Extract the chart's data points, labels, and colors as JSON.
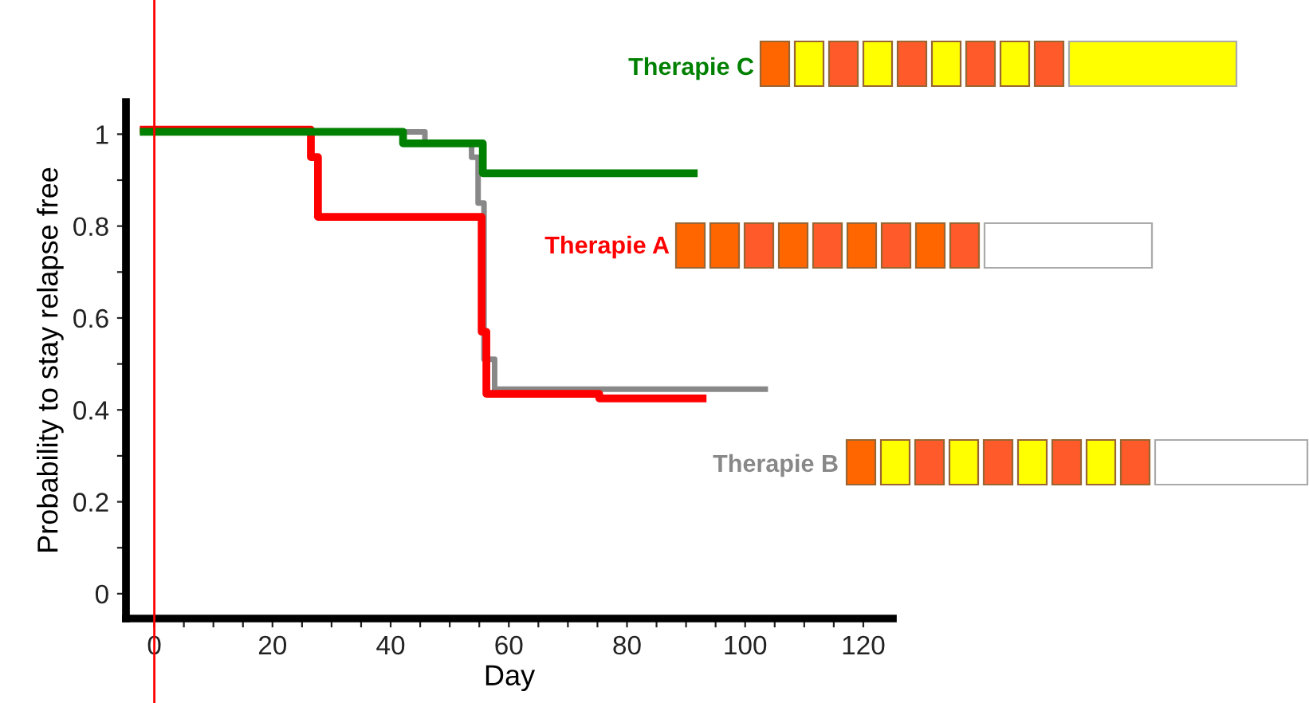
{
  "chart_data": {
    "type": "step",
    "xlabel": "Day",
    "ylabel": "Probability to stay relapse free",
    "series": [
      {
        "name": "Therapie A",
        "color": "#ff0000",
        "x": [
          -1.8,
          26.5,
          27.7,
          55.4,
          56.2,
          75.3,
          92.8
        ],
        "values": [
          1.01,
          0.95,
          0.82,
          0.57,
          0.435,
          0.425,
          0.425
        ]
      },
      {
        "name": "Therapie B",
        "color": "#888888",
        "x": [
          -1.8,
          45.8,
          53.7,
          54.8,
          55.8,
          57.6,
          103.4
        ],
        "values": [
          1.005,
          0.98,
          0.95,
          0.85,
          0.51,
          0.445,
          0.445
        ]
      },
      {
        "name": "Therapie C",
        "color": "#008000",
        "x": [
          -1.8,
          42.1,
          55.6,
          91.3
        ],
        "values": [
          1.005,
          0.98,
          0.915,
          0.915
        ]
      }
    ],
    "xlim": [
      -4.8,
      125
    ],
    "ylim": [
      -0.054,
      1.07
    ],
    "xticks": [
      0,
      {
        "value": 5,
        "label": null
      },
      {
        "value": 10,
        "label": null
      },
      {
        "value": 15,
        "label": null
      },
      20,
      {
        "value": 25,
        "label": null
      },
      {
        "value": 30,
        "label": null
      },
      {
        "value": 35,
        "label": null
      },
      40,
      {
        "value": 45,
        "label": null
      },
      {
        "value": 50,
        "label": null
      },
      {
        "value": 55,
        "label": null
      },
      60,
      {
        "value": 65,
        "label": null
      },
      {
        "value": 70,
        "label": null
      },
      {
        "value": 75,
        "label": null
      },
      80,
      {
        "value": 85,
        "label": null
      },
      {
        "value": 90,
        "label": null
      },
      {
        "value": 95,
        "label": null
      },
      100,
      {
        "value": 105,
        "label": null
      },
      {
        "value": 110,
        "label": null
      },
      {
        "value": 115,
        "label": null
      },
      120
    ],
    "yticks": [
      0,
      {
        "value": 0.1,
        "label": null
      },
      0.2,
      {
        "value": 0.3,
        "label": null
      },
      0.4,
      {
        "value": 0.5,
        "label": null
      },
      0.6,
      {
        "value": 0.7,
        "label": null
      },
      0.8,
      {
        "value": 0.9,
        "label": null
      },
      1
    ],
    "ref_lines": [
      {
        "axis": "x",
        "value": 0,
        "color": "#ff0000"
      }
    ],
    "grid": false,
    "line_style": "solid"
  }
}
